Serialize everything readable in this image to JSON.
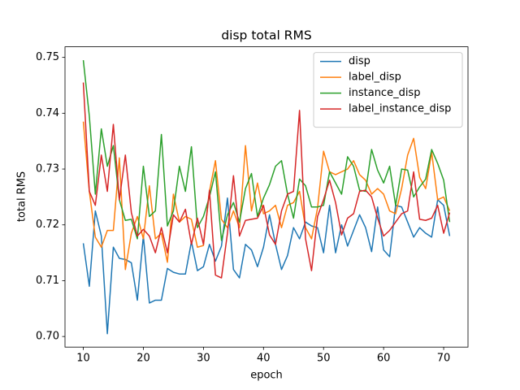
{
  "chart_data": {
    "type": "line",
    "title": "disp total RMS",
    "x_label": "epoch",
    "y_label": "total RMS",
    "x": [
      10,
      11,
      12,
      13,
      14,
      15,
      16,
      17,
      18,
      19,
      20,
      21,
      22,
      23,
      24,
      25,
      26,
      27,
      28,
      29,
      30,
      31,
      32,
      33,
      34,
      35,
      36,
      37,
      38,
      39,
      40,
      41,
      42,
      43,
      44,
      45,
      46,
      47,
      48,
      49,
      50,
      51,
      52,
      53,
      54,
      55,
      56,
      57,
      58,
      59,
      60,
      61,
      62,
      63,
      64,
      65,
      66,
      67,
      68,
      69,
      70,
      71
    ],
    "series": [
      {
        "name": "disp",
        "color": "#1f77b4",
        "values": [
          0.7167,
          0.709,
          0.7225,
          0.718,
          0.7005,
          0.716,
          0.714,
          0.7138,
          0.7132,
          0.7065,
          0.718,
          0.706,
          0.7065,
          0.7065,
          0.7122,
          0.7115,
          0.7112,
          0.7112,
          0.717,
          0.7118,
          0.7125,
          0.7165,
          0.7135,
          0.7162,
          0.7248,
          0.712,
          0.7105,
          0.7165,
          0.7155,
          0.7125,
          0.716,
          0.7218,
          0.7165,
          0.712,
          0.7145,
          0.7195,
          0.7175,
          0.7205,
          0.7198,
          0.7195,
          0.715,
          0.7235,
          0.715,
          0.72,
          0.7162,
          0.719,
          0.7218,
          0.7195,
          0.7152,
          0.7232,
          0.7155,
          0.7143,
          0.7235,
          0.7232,
          0.7205,
          0.7178,
          0.7195,
          0.7185,
          0.7178,
          0.7245,
          0.7235,
          0.718
        ]
      },
      {
        "name": "label_disp",
        "color": "#ff7f0e",
        "values": [
          0.7385,
          0.726,
          0.7178,
          0.716,
          0.719,
          0.719,
          0.732,
          0.712,
          0.7185,
          0.7215,
          0.7175,
          0.727,
          0.7175,
          0.7185,
          0.7133,
          0.7255,
          0.7205,
          0.7215,
          0.721,
          0.716,
          0.7163,
          0.726,
          0.7315,
          0.721,
          0.7195,
          0.7225,
          0.7195,
          0.7342,
          0.7225,
          0.7275,
          0.722,
          0.7225,
          0.7235,
          0.7195,
          0.7235,
          0.724,
          0.726,
          0.7195,
          0.7175,
          0.723,
          0.7332,
          0.7295,
          0.729,
          0.7295,
          0.73,
          0.7315,
          0.729,
          0.728,
          0.7255,
          0.7265,
          0.7255,
          0.7225,
          0.722,
          0.7265,
          0.7325,
          0.7355,
          0.7285,
          0.7265,
          0.733,
          0.7245,
          0.725,
          0.7225
        ]
      },
      {
        "name": "instance_disp",
        "color": "#2ca02c",
        "values": [
          0.7495,
          0.7395,
          0.7255,
          0.7372,
          0.7305,
          0.7342,
          0.7245,
          0.7208,
          0.721,
          0.7175,
          0.7305,
          0.7215,
          0.7225,
          0.7362,
          0.7198,
          0.7225,
          0.7305,
          0.726,
          0.734,
          0.7195,
          0.7215,
          0.725,
          0.7295,
          0.7172,
          0.7218,
          0.724,
          0.7205,
          0.7265,
          0.7292,
          0.7215,
          0.7248,
          0.7272,
          0.7305,
          0.7315,
          0.7255,
          0.7212,
          0.7282,
          0.727,
          0.7232,
          0.7232,
          0.7235,
          0.7295,
          0.7275,
          0.7255,
          0.7322,
          0.7305,
          0.7262,
          0.726,
          0.7335,
          0.7298,
          0.7275,
          0.7305,
          0.7235,
          0.73,
          0.7298,
          0.725,
          0.7268,
          0.7282,
          0.7335,
          0.731,
          0.728,
          0.7205
        ]
      },
      {
        "name": "label_instance_disp",
        "color": "#d62728",
        "values": [
          0.7455,
          0.726,
          0.7235,
          0.7325,
          0.726,
          0.738,
          0.7245,
          0.7325,
          0.7222,
          0.718,
          0.7192,
          0.718,
          0.715,
          0.7195,
          0.715,
          0.7218,
          0.7205,
          0.7228,
          0.7165,
          0.7212,
          0.7165,
          0.7262,
          0.711,
          0.7105,
          0.7185,
          0.7288,
          0.718,
          0.7208,
          0.721,
          0.7212,
          0.7235,
          0.7182,
          0.7165,
          0.7225,
          0.7255,
          0.726,
          0.7405,
          0.7175,
          0.7118,
          0.7215,
          0.7245,
          0.728,
          0.724,
          0.7182,
          0.7212,
          0.722,
          0.726,
          0.7262,
          0.725,
          0.7212,
          0.718,
          0.719,
          0.7205,
          0.722,
          0.7225,
          0.7295,
          0.721,
          0.7208,
          0.7212,
          0.7235,
          0.7185,
          0.7222
        ]
      }
    ],
    "xlim": [
      6.95,
      74.05
    ],
    "ylim": [
      0.6981,
      0.7519
    ],
    "xticks": [
      10,
      20,
      30,
      40,
      50,
      60,
      70
    ],
    "yticks": [
      {
        "value": 0.7,
        "label": "0.70"
      },
      0.71,
      0.72,
      0.73,
      0.74,
      0.75
    ],
    "legend": "upper right"
  }
}
